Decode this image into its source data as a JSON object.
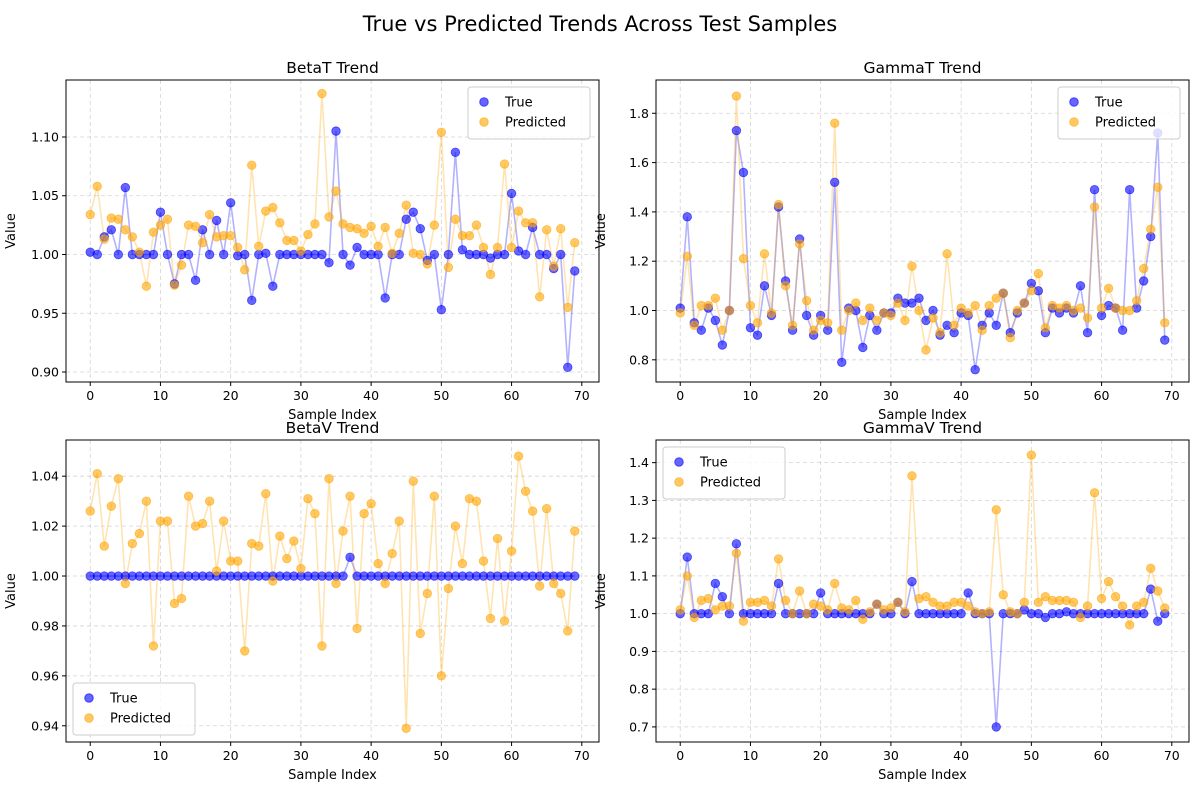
{
  "figure": {
    "title": "True vs Predicted Trends Across Test Samples"
  },
  "colors": {
    "true": "#0000ff",
    "predicted": "#ffa500",
    "grid": "#b0b0b0",
    "axis": "#000000"
  },
  "chart_data": [
    {
      "type": "line",
      "title": "BetaT Trend",
      "xlabel": "Sample Index",
      "ylabel": "Value",
      "xlim": [
        -3.45,
        72.45
      ],
      "ylim": [
        0.8915,
        1.1485
      ],
      "xticks": [
        0,
        10,
        20,
        30,
        40,
        50,
        60,
        70
      ],
      "yticks": [
        0.9,
        0.95,
        1.0,
        1.05,
        1.1
      ],
      "yticks_labels": [
        "0.90",
        "0.95",
        "1.00",
        "1.05",
        "1.10"
      ],
      "grid": true,
      "legend_position": "upper right",
      "x": [
        0,
        1,
        2,
        3,
        4,
        5,
        6,
        7,
        8,
        9,
        10,
        11,
        12,
        13,
        14,
        15,
        16,
        17,
        18,
        19,
        20,
        21,
        22,
        23,
        24,
        25,
        26,
        27,
        28,
        29,
        30,
        31,
        32,
        33,
        34,
        35,
        36,
        37,
        38,
        39,
        40,
        41,
        42,
        43,
        44,
        45,
        46,
        47,
        48,
        49,
        50,
        51,
        52,
        53,
        54,
        55,
        56,
        57,
        58,
        59,
        60,
        61,
        62,
        63,
        64,
        65,
        66,
        67,
        68,
        69
      ],
      "series": [
        {
          "name": "True",
          "values": [
            1.002,
            1.0,
            1.015,
            1.021,
            1.0,
            1.057,
            1.0,
            1.0,
            1.0,
            1.0,
            1.036,
            1.0,
            0.975,
            1.0,
            1.0,
            0.978,
            1.021,
            1.0,
            1.029,
            1.0,
            1.044,
            0.999,
            1.0,
            0.961,
            1.0,
            1.001,
            0.973,
            1.0,
            1.0,
            1.0,
            1.0,
            1.0,
            1.0,
            1.0,
            0.993,
            1.105,
            1.0,
            0.991,
            1.006,
            1.0,
            1.0,
            1.0,
            0.963,
            1.0,
            1.0,
            1.03,
            1.036,
            1.022,
            0.995,
            1.0,
            0.953,
            1.0,
            1.087,
            1.004,
            1.0,
            1.0,
            1.0,
            0.997,
            1.0,
            1.0,
            1.052,
            1.003,
            1.0,
            1.023,
            1.0,
            1.0,
            0.988,
            1.0,
            0.904,
            0.986
          ]
        },
        {
          "name": "Predicted",
          "values": [
            1.034,
            1.058,
            1.013,
            1.031,
            1.03,
            1.021,
            1.015,
            1.002,
            0.973,
            1.019,
            1.025,
            1.03,
            0.974,
            0.991,
            1.025,
            1.024,
            1.01,
            1.034,
            1.015,
            1.016,
            1.016,
            1.006,
            0.987,
            1.076,
            1.007,
            1.037,
            1.04,
            1.027,
            1.012,
            1.012,
            1.003,
            1.017,
            1.026,
            1.137,
            1.032,
            1.054,
            1.026,
            1.023,
            1.022,
            1.018,
            1.024,
            1.007,
            1.023,
            1.001,
            1.018,
            1.042,
            1.001,
            1.0,
            0.992,
            1.025,
            1.104,
            0.989,
            1.03,
            1.016,
            1.016,
            1.025,
            1.006,
            0.983,
            1.006,
            1.077,
            1.006,
            1.037,
            1.027,
            1.027,
            0.964,
            1.021,
            0.99,
            1.022,
            0.955,
            1.01
          ]
        }
      ]
    },
    {
      "type": "line",
      "title": "GammaT Trend",
      "xlabel": "Sample Index",
      "ylabel": "Value",
      "xlim": [
        -3.45,
        72.45
      ],
      "ylim": [
        0.71,
        1.935
      ],
      "xticks": [
        0,
        10,
        20,
        30,
        40,
        50,
        60,
        70
      ],
      "yticks": [
        0.8,
        1.0,
        1.2,
        1.4,
        1.6,
        1.8
      ],
      "yticks_labels": [
        "0.8",
        "1.0",
        "1.2",
        "1.4",
        "1.6",
        "1.8"
      ],
      "grid": true,
      "legend_position": "upper right",
      "x": [
        0,
        1,
        2,
        3,
        4,
        5,
        6,
        7,
        8,
        9,
        10,
        11,
        12,
        13,
        14,
        15,
        16,
        17,
        18,
        19,
        20,
        21,
        22,
        23,
        24,
        25,
        26,
        27,
        28,
        29,
        30,
        31,
        32,
        33,
        34,
        35,
        36,
        37,
        38,
        39,
        40,
        41,
        42,
        43,
        44,
        45,
        46,
        47,
        48,
        49,
        50,
        51,
        52,
        53,
        54,
        55,
        56,
        57,
        58,
        59,
        60,
        61,
        62,
        63,
        64,
        65,
        66,
        67,
        68,
        69
      ],
      "series": [
        {
          "name": "True",
          "values": [
            1.01,
            1.38,
            0.95,
            0.92,
            1.01,
            0.96,
            0.86,
            1.0,
            1.73,
            1.56,
            0.93,
            0.9,
            1.1,
            0.98,
            1.42,
            1.12,
            0.92,
            1.29,
            0.98,
            0.9,
            0.98,
            0.92,
            1.52,
            0.79,
            1.01,
            1.0,
            0.85,
            0.98,
            0.92,
            0.99,
            0.99,
            1.05,
            1.03,
            1.03,
            1.05,
            0.96,
            1.0,
            0.9,
            0.94,
            0.91,
            0.99,
            0.98,
            0.76,
            0.94,
            0.99,
            0.94,
            1.07,
            0.91,
            0.99,
            1.03,
            1.11,
            1.08,
            0.91,
            1.01,
            0.99,
            1.01,
            0.99,
            1.1,
            0.91,
            1.49,
            0.98,
            1.02,
            1.01,
            0.92,
            1.49,
            1.01,
            1.12,
            1.3,
            1.72,
            0.88
          ]
        },
        {
          "name": "Predicted",
          "values": [
            0.99,
            1.22,
            0.94,
            1.02,
            1.02,
            1.05,
            0.92,
            1.0,
            1.87,
            1.21,
            1.02,
            0.95,
            1.23,
            0.99,
            1.43,
            1.1,
            0.94,
            1.27,
            1.04,
            0.92,
            0.96,
            0.95,
            1.76,
            0.92,
            1.0,
            1.03,
            0.96,
            1.01,
            0.96,
            0.99,
            0.98,
            1.03,
            0.96,
            1.18,
            1.0,
            0.84,
            0.97,
            0.91,
            1.23,
            0.94,
            1.01,
            0.99,
            1.02,
            0.92,
            1.02,
            1.05,
            1.07,
            0.89,
            1.0,
            1.03,
            1.08,
            1.15,
            0.93,
            1.02,
            1.01,
            1.02,
            1.0,
            1.01,
            0.97,
            1.42,
            1.01,
            1.09,
            1.01,
            1.0,
            1.0,
            1.04,
            1.17,
            1.33,
            1.5,
            0.95
          ]
        }
      ]
    },
    {
      "type": "line",
      "title": "BetaV Trend",
      "xlabel": "Sample Index",
      "ylabel": "Value",
      "xlim": [
        -3.45,
        72.45
      ],
      "ylim": [
        0.9335,
        1.0545
      ],
      "xticks": [
        0,
        10,
        20,
        30,
        40,
        50,
        60,
        70
      ],
      "yticks": [
        0.94,
        0.96,
        0.98,
        1.0,
        1.02,
        1.04
      ],
      "yticks_labels": [
        "0.94",
        "0.96",
        "0.98",
        "1.00",
        "1.02",
        "1.04"
      ],
      "grid": true,
      "legend_position": "lower left",
      "x": [
        0,
        1,
        2,
        3,
        4,
        5,
        6,
        7,
        8,
        9,
        10,
        11,
        12,
        13,
        14,
        15,
        16,
        17,
        18,
        19,
        20,
        21,
        22,
        23,
        24,
        25,
        26,
        27,
        28,
        29,
        30,
        31,
        32,
        33,
        34,
        35,
        36,
        37,
        38,
        39,
        40,
        41,
        42,
        43,
        44,
        45,
        46,
        47,
        48,
        49,
        50,
        51,
        52,
        53,
        54,
        55,
        56,
        57,
        58,
        59,
        60,
        61,
        62,
        63,
        64,
        65,
        66,
        67,
        68,
        69
      ],
      "series": [
        {
          "name": "True",
          "values": [
            1.0,
            1.0,
            1.0,
            1.0,
            1.0,
            1.0,
            1.0,
            1.0,
            1.0,
            1.0,
            1.0,
            1.0,
            1.0,
            1.0,
            1.0,
            1.0,
            1.0,
            1.0,
            1.0,
            1.0,
            1.0,
            1.0,
            1.0,
            1.0,
            1.0,
            1.0,
            1.0,
            1.0,
            1.0,
            1.0,
            1.0,
            1.0,
            1.0,
            1.0,
            1.0,
            1.0,
            1.0,
            1.0075,
            1.0,
            1.0,
            1.0,
            1.0,
            1.0,
            1.0,
            1.0,
            1.0,
            1.0,
            1.0,
            1.0,
            1.0,
            1.0,
            1.0,
            1.0,
            1.0,
            1.0,
            1.0,
            1.0,
            1.0,
            1.0,
            1.0,
            1.0,
            1.0,
            1.0,
            1.0,
            1.0,
            1.0,
            1.0,
            1.0,
            1.0,
            1.0
          ]
        },
        {
          "name": "Predicted",
          "values": [
            1.026,
            1.041,
            1.012,
            1.028,
            1.039,
            0.997,
            1.013,
            1.017,
            1.03,
            0.972,
            1.022,
            1.022,
            0.989,
            0.991,
            1.032,
            1.02,
            1.021,
            1.03,
            1.002,
            1.022,
            1.006,
            1.006,
            0.97,
            1.013,
            1.012,
            1.033,
            0.998,
            1.016,
            1.007,
            1.014,
            1.003,
            1.031,
            1.025,
            0.972,
            1.039,
            0.997,
            1.018,
            1.032,
            0.979,
            1.025,
            1.029,
            1.005,
            0.997,
            1.009,
            1.022,
            0.939,
            1.038,
            0.977,
            0.993,
            1.032,
            0.96,
            0.995,
            1.02,
            1.005,
            1.031,
            1.03,
            1.006,
            0.983,
            1.015,
            0.982,
            1.01,
            1.048,
            1.034,
            1.026,
            0.996,
            1.027,
            0.997,
            0.993,
            0.978,
            1.018
          ]
        }
      ]
    },
    {
      "type": "line",
      "title": "GammaV Trend",
      "xlabel": "Sample Index",
      "ylabel": "Value",
      "xlim": [
        -3.45,
        72.45
      ],
      "ylim": [
        0.66,
        1.46
      ],
      "xticks": [
        0,
        10,
        20,
        30,
        40,
        50,
        60,
        70
      ],
      "yticks": [
        0.7,
        0.8,
        0.9,
        1.0,
        1.1,
        1.2,
        1.3,
        1.4
      ],
      "yticks_labels": [
        "0.7",
        "0.8",
        "0.9",
        "1.0",
        "1.1",
        "1.2",
        "1.3",
        "1.4"
      ],
      "grid": true,
      "legend_position": "upper left",
      "x": [
        0,
        1,
        2,
        3,
        4,
        5,
        6,
        7,
        8,
        9,
        10,
        11,
        12,
        13,
        14,
        15,
        16,
        17,
        18,
        19,
        20,
        21,
        22,
        23,
        24,
        25,
        26,
        27,
        28,
        29,
        30,
        31,
        32,
        33,
        34,
        35,
        36,
        37,
        38,
        39,
        40,
        41,
        42,
        43,
        44,
        45,
        46,
        47,
        48,
        49,
        50,
        51,
        52,
        53,
        54,
        55,
        56,
        57,
        58,
        59,
        60,
        61,
        62,
        63,
        64,
        65,
        66,
        67,
        68,
        69
      ],
      "series": [
        {
          "name": "True",
          "values": [
            1.0,
            1.15,
            1.0,
            1.0,
            1.0,
            1.08,
            1.045,
            1.0,
            1.185,
            1.0,
            1.0,
            1.0,
            1.0,
            1.0,
            1.08,
            1.0,
            1.0,
            1.0,
            1.0,
            1.0,
            1.055,
            1.0,
            1.0,
            1.0,
            1.0,
            1.0,
            1.0,
            1.0,
            1.025,
            1.0,
            1.0,
            1.03,
            1.0,
            1.085,
            1.0,
            1.0,
            1.0,
            1.0,
            1.0,
            1.0,
            1.0,
            1.055,
            1.0,
            1.0,
            1.0,
            0.7,
            1.0,
            1.0,
            1.0,
            1.01,
            1.0,
            1.0,
            0.99,
            1.0,
            1.0,
            1.005,
            1.0,
            1.0,
            1.0,
            1.0,
            1.0,
            1.0,
            1.0,
            1.0,
            1.0,
            1.0,
            1.0,
            1.065,
            0.98,
            1.0
          ]
        },
        {
          "name": "Predicted",
          "values": [
            1.01,
            1.1,
            0.99,
            1.035,
            1.04,
            1.01,
            1.02,
            1.02,
            1.16,
            0.98,
            1.03,
            1.03,
            1.035,
            1.02,
            1.145,
            1.035,
            1.0,
            1.06,
            1.0,
            1.025,
            1.02,
            1.01,
            1.08,
            1.015,
            1.01,
            1.035,
            0.985,
            1.005,
            1.025,
            1.01,
            1.015,
            1.03,
            1.005,
            1.365,
            1.04,
            1.045,
            1.03,
            1.02,
            1.02,
            1.03,
            1.03,
            1.02,
            1.005,
            1.0,
            1.005,
            1.275,
            1.05,
            1.005,
            1.0,
            1.03,
            1.42,
            1.03,
            1.045,
            1.035,
            1.035,
            1.035,
            1.03,
            0.99,
            1.02,
            1.32,
            1.04,
            1.085,
            1.045,
            1.02,
            0.97,
            1.02,
            1.03,
            1.12,
            1.06,
            1.015
          ]
        }
      ]
    }
  ]
}
